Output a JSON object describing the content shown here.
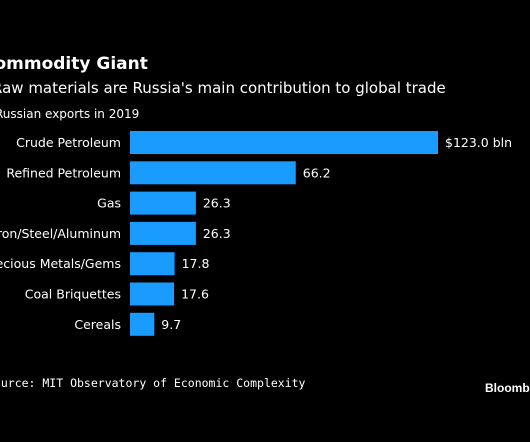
{
  "header": {
    "title": "Commodity Giant",
    "subtitle": "Raw materials are Russia's main contribution to global trade",
    "units_note": "Russian exports in 2019"
  },
  "footer": {
    "source": "Source: MIT Observatory of Economic Complexity",
    "brand": "Bloomberg"
  },
  "colors": {
    "background": "#000000",
    "bar": "#1a9bff",
    "text": "#ffffff"
  },
  "chart_data": {
    "type": "bar",
    "orientation": "horizontal",
    "categories": [
      "Crude Petroleum",
      "Refined Petroleum",
      "Gas",
      "Iron/Steel/Aluminum",
      "Precious Metals/Gems",
      "Coal Briquettes",
      "Cereals"
    ],
    "values": [
      123.0,
      66.2,
      26.3,
      26.3,
      17.8,
      17.6,
      9.7
    ],
    "value_labels": [
      "$123.0 bln",
      "66.2",
      "26.3",
      "26.3",
      "17.8",
      "17.6",
      "9.7"
    ],
    "title": "Commodity Giant",
    "subtitle": "Raw materials are Russia's main contribution to global trade",
    "units": "Russian exports in 2019",
    "xlim": [
      0,
      123.0
    ],
    "grid": false,
    "legend": "none"
  }
}
